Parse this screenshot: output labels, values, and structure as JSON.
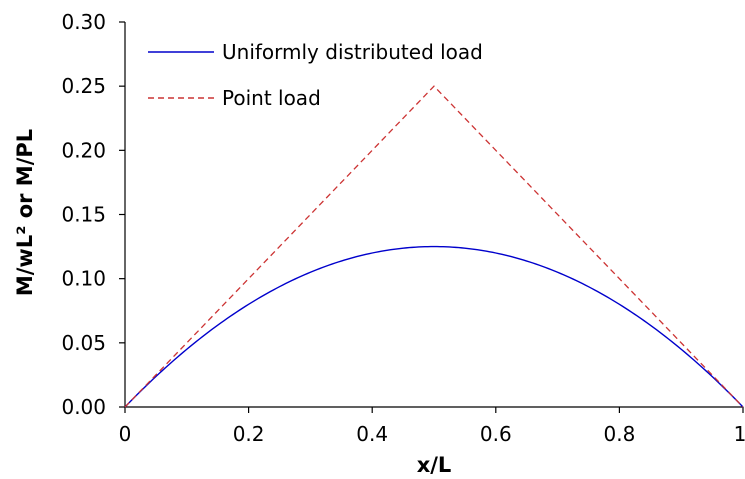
{
  "chart_data": {
    "type": "line",
    "title": "",
    "xlabel": "x/L",
    "ylabel": "M/wL² or M/PL",
    "xlim": [
      0,
      1
    ],
    "ylim": [
      0,
      0.3
    ],
    "x_ticks": [
      "0",
      "0.2",
      "0.4",
      "0.6",
      "0.8",
      "1"
    ],
    "y_ticks": [
      "0.00",
      "0.05",
      "0.10",
      "0.15",
      "0.20",
      "0.25",
      "0.30"
    ],
    "grid": false,
    "legend_position": "top-left",
    "series": [
      {
        "name": "Uniformly distributed load",
        "color": "#0000cc",
        "style": "solid",
        "x": [
          0,
          0.05,
          0.1,
          0.15,
          0.2,
          0.25,
          0.3,
          0.35,
          0.4,
          0.45,
          0.5,
          0.55,
          0.6,
          0.65,
          0.7,
          0.75,
          0.8,
          0.85,
          0.9,
          0.95,
          1
        ],
        "values": [
          0,
          0.02375,
          0.045,
          0.06375,
          0.08,
          0.09375,
          0.105,
          0.11375,
          0.12,
          0.12375,
          0.125,
          0.12375,
          0.12,
          0.11375,
          0.105,
          0.09375,
          0.08,
          0.06375,
          0.045,
          0.02375,
          0
        ]
      },
      {
        "name": "Point load",
        "color": "#cc3333",
        "style": "dashed",
        "x": [
          0,
          0.5,
          1
        ],
        "values": [
          0,
          0.25,
          0
        ]
      }
    ]
  }
}
